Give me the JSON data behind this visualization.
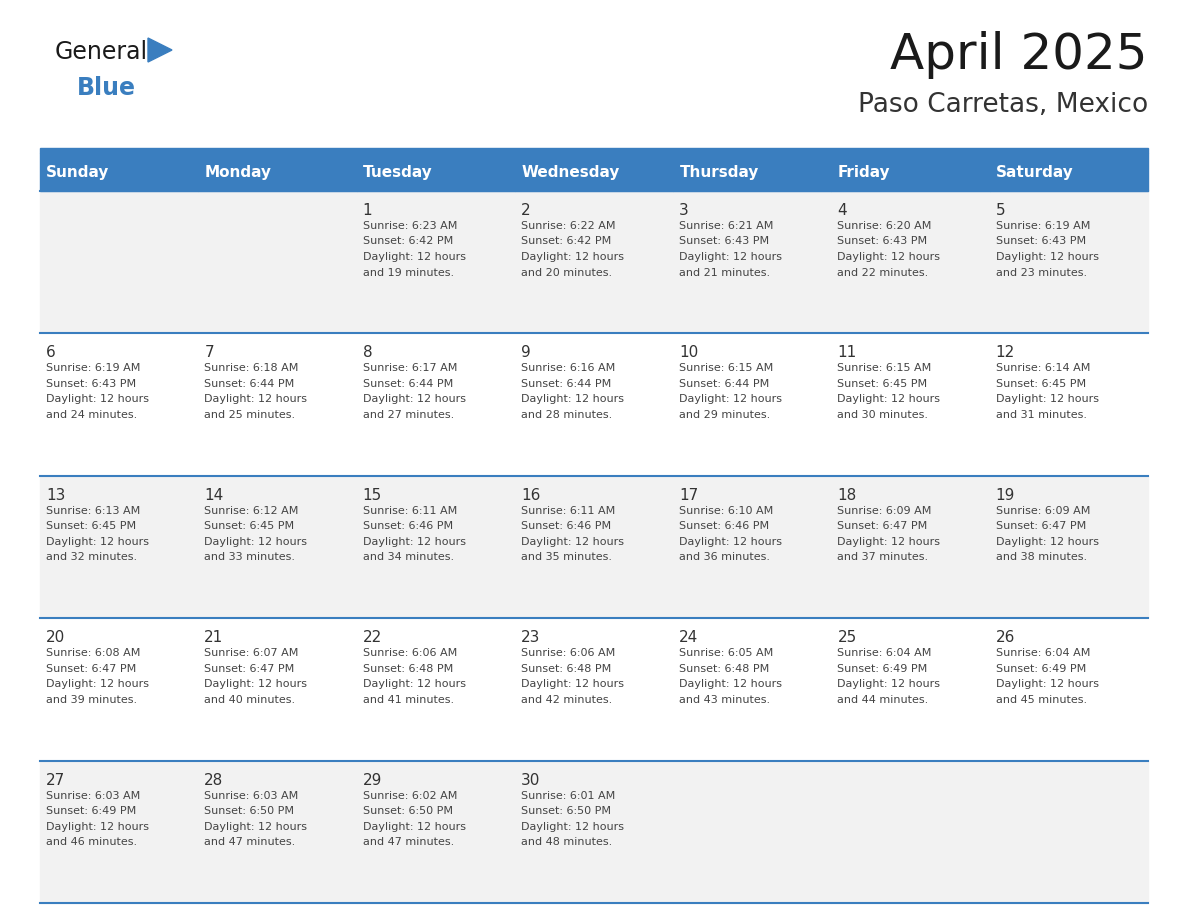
{
  "title": "April 2025",
  "subtitle": "Paso Carretas, Mexico",
  "days_of_week": [
    "Sunday",
    "Monday",
    "Tuesday",
    "Wednesday",
    "Thursday",
    "Friday",
    "Saturday"
  ],
  "header_bg": "#3a7ebf",
  "header_text": "#FFFFFF",
  "row_bg_alt": "#f2f2f2",
  "row_bg_white": "#FFFFFF",
  "cell_text_color": "#444444",
  "day_number_color": "#333333",
  "border_color": "#3a7ebf",
  "title_color": "#1a1a1a",
  "subtitle_color": "#333333",
  "logo_general_color": "#1a1a1a",
  "logo_blue_color": "#3a7ebf",
  "calendar_data": [
    [
      {
        "day": null,
        "sunrise": null,
        "sunset": null,
        "daylight_hours": null,
        "daylight_minutes": null
      },
      {
        "day": null,
        "sunrise": null,
        "sunset": null,
        "daylight_hours": null,
        "daylight_minutes": null
      },
      {
        "day": 1,
        "sunrise": "6:23 AM",
        "sunset": "6:42 PM",
        "daylight_hours": 12,
        "daylight_minutes": 19
      },
      {
        "day": 2,
        "sunrise": "6:22 AM",
        "sunset": "6:42 PM",
        "daylight_hours": 12,
        "daylight_minutes": 20
      },
      {
        "day": 3,
        "sunrise": "6:21 AM",
        "sunset": "6:43 PM",
        "daylight_hours": 12,
        "daylight_minutes": 21
      },
      {
        "day": 4,
        "sunrise": "6:20 AM",
        "sunset": "6:43 PM",
        "daylight_hours": 12,
        "daylight_minutes": 22
      },
      {
        "day": 5,
        "sunrise": "6:19 AM",
        "sunset": "6:43 PM",
        "daylight_hours": 12,
        "daylight_minutes": 23
      }
    ],
    [
      {
        "day": 6,
        "sunrise": "6:19 AM",
        "sunset": "6:43 PM",
        "daylight_hours": 12,
        "daylight_minutes": 24
      },
      {
        "day": 7,
        "sunrise": "6:18 AM",
        "sunset": "6:44 PM",
        "daylight_hours": 12,
        "daylight_minutes": 25
      },
      {
        "day": 8,
        "sunrise": "6:17 AM",
        "sunset": "6:44 PM",
        "daylight_hours": 12,
        "daylight_minutes": 27
      },
      {
        "day": 9,
        "sunrise": "6:16 AM",
        "sunset": "6:44 PM",
        "daylight_hours": 12,
        "daylight_minutes": 28
      },
      {
        "day": 10,
        "sunrise": "6:15 AM",
        "sunset": "6:44 PM",
        "daylight_hours": 12,
        "daylight_minutes": 29
      },
      {
        "day": 11,
        "sunrise": "6:15 AM",
        "sunset": "6:45 PM",
        "daylight_hours": 12,
        "daylight_minutes": 30
      },
      {
        "day": 12,
        "sunrise": "6:14 AM",
        "sunset": "6:45 PM",
        "daylight_hours": 12,
        "daylight_minutes": 31
      }
    ],
    [
      {
        "day": 13,
        "sunrise": "6:13 AM",
        "sunset": "6:45 PM",
        "daylight_hours": 12,
        "daylight_minutes": 32
      },
      {
        "day": 14,
        "sunrise": "6:12 AM",
        "sunset": "6:45 PM",
        "daylight_hours": 12,
        "daylight_minutes": 33
      },
      {
        "day": 15,
        "sunrise": "6:11 AM",
        "sunset": "6:46 PM",
        "daylight_hours": 12,
        "daylight_minutes": 34
      },
      {
        "day": 16,
        "sunrise": "6:11 AM",
        "sunset": "6:46 PM",
        "daylight_hours": 12,
        "daylight_minutes": 35
      },
      {
        "day": 17,
        "sunrise": "6:10 AM",
        "sunset": "6:46 PM",
        "daylight_hours": 12,
        "daylight_minutes": 36
      },
      {
        "day": 18,
        "sunrise": "6:09 AM",
        "sunset": "6:47 PM",
        "daylight_hours": 12,
        "daylight_minutes": 37
      },
      {
        "day": 19,
        "sunrise": "6:09 AM",
        "sunset": "6:47 PM",
        "daylight_hours": 12,
        "daylight_minutes": 38
      }
    ],
    [
      {
        "day": 20,
        "sunrise": "6:08 AM",
        "sunset": "6:47 PM",
        "daylight_hours": 12,
        "daylight_minutes": 39
      },
      {
        "day": 21,
        "sunrise": "6:07 AM",
        "sunset": "6:47 PM",
        "daylight_hours": 12,
        "daylight_minutes": 40
      },
      {
        "day": 22,
        "sunrise": "6:06 AM",
        "sunset": "6:48 PM",
        "daylight_hours": 12,
        "daylight_minutes": 41
      },
      {
        "day": 23,
        "sunrise": "6:06 AM",
        "sunset": "6:48 PM",
        "daylight_hours": 12,
        "daylight_minutes": 42
      },
      {
        "day": 24,
        "sunrise": "6:05 AM",
        "sunset": "6:48 PM",
        "daylight_hours": 12,
        "daylight_minutes": 43
      },
      {
        "day": 25,
        "sunrise": "6:04 AM",
        "sunset": "6:49 PM",
        "daylight_hours": 12,
        "daylight_minutes": 44
      },
      {
        "day": 26,
        "sunrise": "6:04 AM",
        "sunset": "6:49 PM",
        "daylight_hours": 12,
        "daylight_minutes": 45
      }
    ],
    [
      {
        "day": 27,
        "sunrise": "6:03 AM",
        "sunset": "6:49 PM",
        "daylight_hours": 12,
        "daylight_minutes": 46
      },
      {
        "day": 28,
        "sunrise": "6:03 AM",
        "sunset": "6:50 PM",
        "daylight_hours": 12,
        "daylight_minutes": 47
      },
      {
        "day": 29,
        "sunrise": "6:02 AM",
        "sunset": "6:50 PM",
        "daylight_hours": 12,
        "daylight_minutes": 47
      },
      {
        "day": 30,
        "sunrise": "6:01 AM",
        "sunset": "6:50 PM",
        "daylight_hours": 12,
        "daylight_minutes": 48
      },
      {
        "day": null,
        "sunrise": null,
        "sunset": null,
        "daylight_hours": null,
        "daylight_minutes": null
      },
      {
        "day": null,
        "sunrise": null,
        "sunset": null,
        "daylight_hours": null,
        "daylight_minutes": null
      },
      {
        "day": null,
        "sunrise": null,
        "sunset": null,
        "daylight_hours": null,
        "daylight_minutes": null
      }
    ]
  ]
}
